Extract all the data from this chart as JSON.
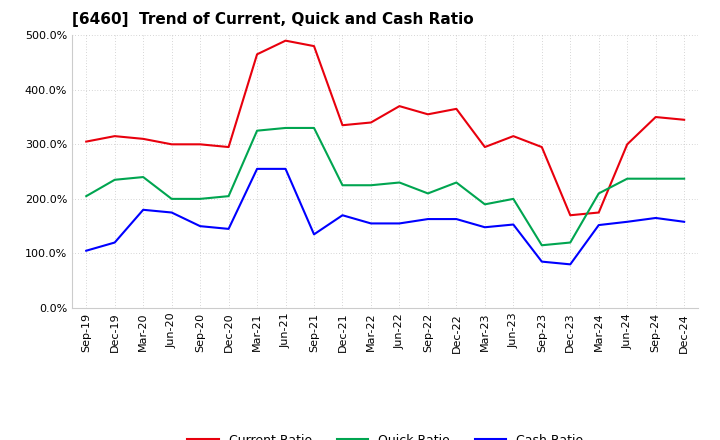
{
  "title": "[6460]  Trend of Current, Quick and Cash Ratio",
  "labels": [
    "Sep-19",
    "Dec-19",
    "Mar-20",
    "Jun-20",
    "Sep-20",
    "Dec-20",
    "Mar-21",
    "Jun-21",
    "Sep-21",
    "Dec-21",
    "Mar-22",
    "Jun-22",
    "Sep-22",
    "Dec-22",
    "Mar-23",
    "Jun-23",
    "Sep-23",
    "Dec-23",
    "Mar-24",
    "Jun-24",
    "Sep-24",
    "Dec-24"
  ],
  "current_ratio": [
    305,
    315,
    310,
    300,
    300,
    295,
    465,
    490,
    480,
    335,
    340,
    370,
    355,
    365,
    295,
    315,
    295,
    170,
    175,
    300,
    350,
    345
  ],
  "quick_ratio": [
    205,
    235,
    240,
    200,
    200,
    205,
    325,
    330,
    330,
    225,
    225,
    230,
    210,
    230,
    190,
    200,
    115,
    120,
    210,
    237,
    237,
    237
  ],
  "cash_ratio": [
    105,
    120,
    180,
    175,
    150,
    145,
    255,
    255,
    135,
    170,
    155,
    155,
    163,
    163,
    148,
    153,
    85,
    80,
    152,
    158,
    165,
    158
  ],
  "current_color": "#e8000d",
  "quick_color": "#00a550",
  "cash_color": "#0000ff",
  "ylim": [
    0,
    500
  ],
  "yticks": [
    0,
    100,
    200,
    300,
    400,
    500
  ],
  "background_color": "#ffffff",
  "plot_bg_color": "#ffffff",
  "grid_color": "#b0b0b0",
  "title_fontsize": 11,
  "legend_fontsize": 9,
  "axis_fontsize": 8
}
